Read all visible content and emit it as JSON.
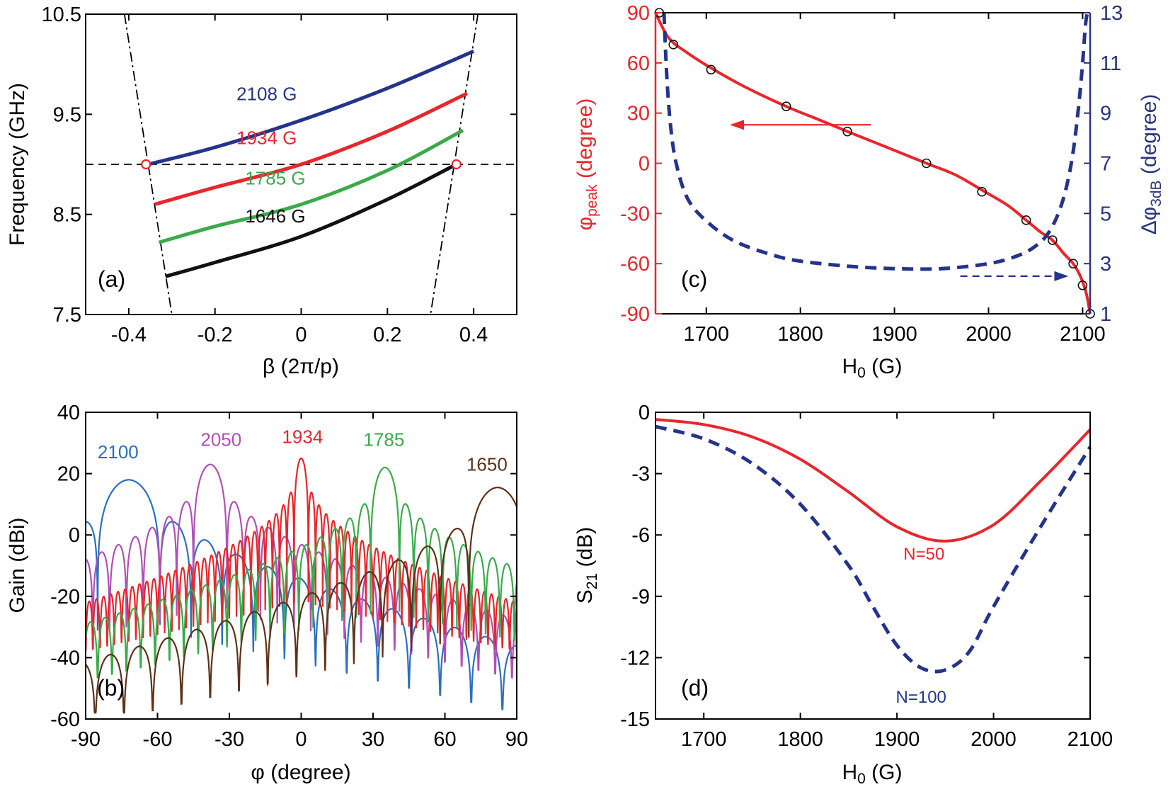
{
  "colors": {
    "red": "#e8262b",
    "blue": "#24348c",
    "green": "#3aaa4a",
    "black": "#111111",
    "lightblue": "#2a6fc0",
    "magenta": "#b04fb6",
    "brown": "#5c3218",
    "axis_blue": "#29347e"
  },
  "chart_data": [
    {
      "panel": "a",
      "type": "line",
      "panel_label": "(a)",
      "xlabel": "β (2π/p)",
      "ylabel": "Frequency (GHz)",
      "xlim": [
        -0.5,
        0.5
      ],
      "ylim": [
        7.5,
        10.5
      ],
      "xticks": [
        -0.4,
        -0.2,
        0,
        0.2,
        0.4
      ],
      "xtick_labels": [
        "-0.4",
        "-0.2",
        "0",
        "0.2",
        "0.4"
      ],
      "yticks": [
        7.5,
        8.5,
        9.5,
        10.5
      ],
      "ytick_labels": [
        "7.5",
        "8.5",
        "9.5",
        "10.5"
      ],
      "series": [
        {
          "name": "2108 G",
          "label": "2108 G",
          "color": "blue",
          "label_at": [
            -0.15,
            9.64
          ],
          "x": [
            -0.355,
            -0.2,
            0,
            0.2,
            0.4
          ],
          "y": [
            9.0,
            9.17,
            9.44,
            9.76,
            10.13
          ]
        },
        {
          "name": "1934 G",
          "label": "1934 G",
          "color": "red",
          "label_at": [
            -0.15,
            9.2
          ],
          "x": [
            -0.34,
            -0.2,
            0,
            0.2,
            0.385
          ],
          "y": [
            8.6,
            8.77,
            9.0,
            9.33,
            9.71
          ]
        },
        {
          "name": "1785 G",
          "label": "1785 G",
          "color": "green",
          "label_at": [
            -0.13,
            8.8
          ],
          "x": [
            -0.33,
            -0.2,
            0,
            0.2,
            0.375
          ],
          "y": [
            8.22,
            8.38,
            8.6,
            8.94,
            9.34
          ]
        },
        {
          "name": "1646 G",
          "label": "1646 G",
          "color": "black",
          "label_at": [
            -0.13,
            8.42
          ],
          "x": [
            -0.315,
            -0.2,
            0,
            0.2,
            0.36
          ],
          "y": [
            7.88,
            8.02,
            8.28,
            8.65,
            9.0
          ]
        }
      ],
      "reference_lines": [
        {
          "style": "dashed",
          "y": 9.0
        },
        {
          "style": "dashdot",
          "x": [
            -0.41,
            -0.3
          ],
          "y": [
            10.5,
            7.5
          ]
        },
        {
          "style": "dashdot",
          "x": [
            0.41,
            0.3
          ],
          "y": [
            10.5,
            7.5
          ]
        }
      ],
      "markers": [
        {
          "x": -0.36,
          "y": 9.0
        },
        {
          "x": 0.36,
          "y": 9.0
        }
      ]
    },
    {
      "panel": "c",
      "type": "line",
      "panel_label": "(c)",
      "xlabel_main": "H",
      "xlabel_sub": "0",
      "xlabel_unit": " (G)",
      "ylabel_main": "φ",
      "ylabel_sub": "peak",
      "ylabel_unit": " (degree)",
      "y2label_main": "Δφ",
      "y2label_sub": "3dB",
      "y2label_unit": " (degree)",
      "xlim": [
        1646,
        2108
      ],
      "ylim": [
        -90,
        90
      ],
      "y2lim": [
        1,
        13
      ],
      "xticks": [
        1700,
        1800,
        1900,
        2000,
        2100
      ],
      "xtick_labels": [
        "1700",
        "1800",
        "1900",
        "2000",
        "2100"
      ],
      "yticks": [
        -90,
        -60,
        -30,
        0,
        30,
        60,
        90
      ],
      "ytick_labels": [
        "-90",
        "-60",
        "-30",
        "0",
        "30",
        "60",
        "90"
      ],
      "y2ticks": [
        1,
        3,
        5,
        7,
        9,
        11,
        13
      ],
      "y2tick_labels": [
        "1",
        "3",
        "5",
        "7",
        "9",
        "11",
        "13"
      ],
      "series": [
        {
          "name": "φpeak fit",
          "color": "red",
          "axis": "left",
          "style": "solid",
          "x": [
            1646,
            1660,
            1680,
            1705,
            1740,
            1785,
            1820,
            1850,
            1890,
            1934,
            1965,
            1993,
            2020,
            2040,
            2055,
            2068,
            2080,
            2090,
            2098,
            2104,
            2108
          ],
          "y": [
            90,
            75,
            66,
            57,
            46,
            34,
            26,
            19,
            10,
            0,
            -7,
            -16,
            -25,
            -34,
            -41,
            -46,
            -54,
            -60,
            -68,
            -78,
            -90
          ]
        },
        {
          "name": "φpeak points",
          "color": "black",
          "axis": "left",
          "style": "markers",
          "x": [
            1650,
            1665,
            1705,
            1785,
            1850,
            1934,
            1993,
            2040,
            2068,
            2090,
            2100,
            2108
          ],
          "y": [
            90,
            71,
            56,
            34,
            19,
            0,
            -17,
            -34,
            -46,
            -60,
            -73,
            -90
          ]
        },
        {
          "name": "Δφ3dB",
          "color": "blue",
          "axis": "right",
          "style": "dashed",
          "x": [
            1655,
            1658,
            1662,
            1668,
            1680,
            1700,
            1730,
            1770,
            1800,
            1850,
            1900,
            1950,
            2000,
            2030,
            2050,
            2065,
            2078,
            2088,
            2095,
            2100,
            2103,
            2105
          ],
          "y": [
            13,
            10.5,
            8.5,
            7.0,
            5.6,
            4.7,
            3.9,
            3.35,
            3.1,
            2.9,
            2.8,
            2.8,
            3.0,
            3.3,
            3.7,
            4.3,
            5.4,
            7.0,
            9.0,
            11.0,
            12.5,
            13
          ]
        }
      ],
      "arrows": [
        {
          "color": "red",
          "from": [
            1875,
            23
          ],
          "to": [
            1725,
            23
          ]
        },
        {
          "color": "blue",
          "from": [
            1970,
            2.5
          ],
          "to": [
            2085,
            2.5
          ],
          "dashed": true
        }
      ]
    },
    {
      "panel": "b",
      "type": "line",
      "panel_label": "(b)",
      "xlabel": "φ (degree)",
      "ylabel": "Gain  (dBi)",
      "xlim": [
        -90,
        90
      ],
      "ylim": [
        -60,
        40
      ],
      "xticks": [
        -90,
        -60,
        -30,
        0,
        30,
        60,
        90
      ],
      "xtick_labels": [
        "-90",
        "-60",
        "-30",
        "0",
        "30",
        "60",
        "90"
      ],
      "yticks": [
        -60,
        -40,
        -20,
        0,
        20,
        40
      ],
      "ytick_labels": [
        "-60",
        "-40",
        "-20",
        "0",
        "20",
        "40"
      ],
      "series": [
        {
          "name": "2100",
          "label": "2100",
          "color": "lightblue",
          "peak_x": -72,
          "peak_y": 18,
          "beamwidth": 13,
          "label_at": [
            -85,
            25
          ]
        },
        {
          "name": "2050",
          "label": "2050",
          "color": "magenta",
          "peak_x": -38,
          "peak_y": 23,
          "beamwidth": 7,
          "label_at": [
            -42,
            29
          ]
        },
        {
          "name": "1934",
          "label": "1934",
          "color": "red",
          "peak_x": 0,
          "peak_y": 25,
          "beamwidth": 3,
          "label_at": [
            -8,
            30
          ]
        },
        {
          "name": "1785",
          "label": "1785",
          "color": "green",
          "peak_x": 35,
          "peak_y": 22,
          "beamwidth": 6,
          "label_at": [
            26,
            29
          ]
        },
        {
          "name": "1650",
          "label": "1650",
          "color": "brown",
          "peak_x": 82,
          "peak_y": 15.5,
          "beamwidth": 12,
          "label_at": [
            69,
            21
          ]
        }
      ]
    },
    {
      "panel": "d",
      "type": "line",
      "panel_label": "(d)",
      "xlabel_main": "H",
      "xlabel_sub": "0",
      "xlabel_unit": " (G)",
      "ylabel_main": "S",
      "ylabel_sub": "21",
      "ylabel_unit": " (dB)",
      "xlim": [
        1650,
        2100
      ],
      "ylim": [
        -15,
        0
      ],
      "xticks": [
        1700,
        1800,
        1900,
        2000,
        2100
      ],
      "xtick_labels": [
        "1700",
        "1800",
        "1900",
        "2000",
        "2100"
      ],
      "yticks": [
        -15,
        -12,
        -9,
        -6,
        -3,
        0
      ],
      "ytick_labels": [
        "-15",
        "-12",
        "-9",
        "-6",
        "-3",
        "0"
      ],
      "series": [
        {
          "name": "N=50",
          "label": "N=50",
          "color": "red",
          "style": "solid",
          "label_at": [
            1928,
            -7.2
          ],
          "x": [
            1650,
            1700,
            1750,
            1800,
            1850,
            1900,
            1950,
            2000,
            2050,
            2100
          ],
          "y": [
            -0.35,
            -0.6,
            -1.2,
            -2.3,
            -3.9,
            -5.6,
            -6.3,
            -5.5,
            -3.3,
            -0.85
          ]
        },
        {
          "name": "N=100",
          "label": "N=100",
          "color": "blue",
          "style": "dashed",
          "label_at": [
            1925,
            -14.2
          ],
          "x": [
            1650,
            1700,
            1750,
            1800,
            1850,
            1875,
            1900,
            1925,
            1950,
            1975,
            2000,
            2050,
            2100
          ],
          "y": [
            -0.7,
            -1.3,
            -2.5,
            -4.5,
            -7.5,
            -9.5,
            -11.4,
            -12.5,
            -12.6,
            -11.7,
            -9.5,
            -5.5,
            -1.7
          ]
        }
      ]
    }
  ]
}
